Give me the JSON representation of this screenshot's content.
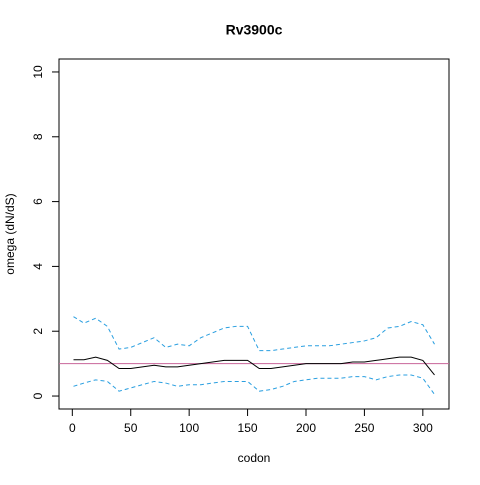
{
  "chart_data": {
    "type": "line",
    "title": "Rv3900c",
    "xlabel": "codon",
    "ylabel": "omega (dN/dS)",
    "x": [
      1,
      10,
      20,
      30,
      40,
      50,
      60,
      70,
      80,
      90,
      100,
      110,
      120,
      130,
      140,
      150,
      160,
      170,
      180,
      190,
      200,
      210,
      220,
      230,
      240,
      250,
      260,
      270,
      280,
      290,
      300,
      310
    ],
    "series": [
      {
        "color": "#000000",
        "dashed": false,
        "values": [
          1.12,
          1.12,
          1.2,
          1.1,
          0.85,
          0.85,
          0.9,
          0.95,
          0.9,
          0.9,
          0.95,
          1.0,
          1.05,
          1.1,
          1.1,
          1.1,
          0.85,
          0.85,
          0.9,
          0.95,
          1.0,
          1.0,
          1.0,
          1.0,
          1.05,
          1.05,
          1.1,
          1.15,
          1.2,
          1.2,
          1.1,
          0.65
        ]
      },
      {
        "color": "#2a9fe0",
        "dashed": true,
        "values": [
          2.45,
          2.25,
          2.4,
          2.15,
          1.45,
          1.5,
          1.65,
          1.8,
          1.5,
          1.6,
          1.55,
          1.8,
          1.95,
          2.1,
          2.15,
          2.15,
          1.4,
          1.4,
          1.45,
          1.5,
          1.55,
          1.55,
          1.55,
          1.6,
          1.65,
          1.7,
          1.8,
          2.1,
          2.15,
          2.3,
          2.2,
          1.6
        ]
      },
      {
        "color": "#2a9fe0",
        "dashed": true,
        "values": [
          0.3,
          0.4,
          0.5,
          0.45,
          0.15,
          0.25,
          0.35,
          0.45,
          0.4,
          0.3,
          0.35,
          0.35,
          0.4,
          0.45,
          0.45,
          0.45,
          0.15,
          0.2,
          0.3,
          0.45,
          0.5,
          0.55,
          0.55,
          0.55,
          0.6,
          0.6,
          0.5,
          0.6,
          0.65,
          0.65,
          0.55,
          0.05
        ]
      }
    ],
    "hline": 1,
    "hline_color": "#c8649a",
    "xlim": [
      -11.4,
      322.4
    ],
    "ylim": [
      -0.4,
      10.4
    ],
    "xticks": [
      0,
      50,
      100,
      150,
      200,
      250,
      300
    ],
    "yticks": [
      0,
      2,
      4,
      6,
      8,
      10
    ]
  }
}
